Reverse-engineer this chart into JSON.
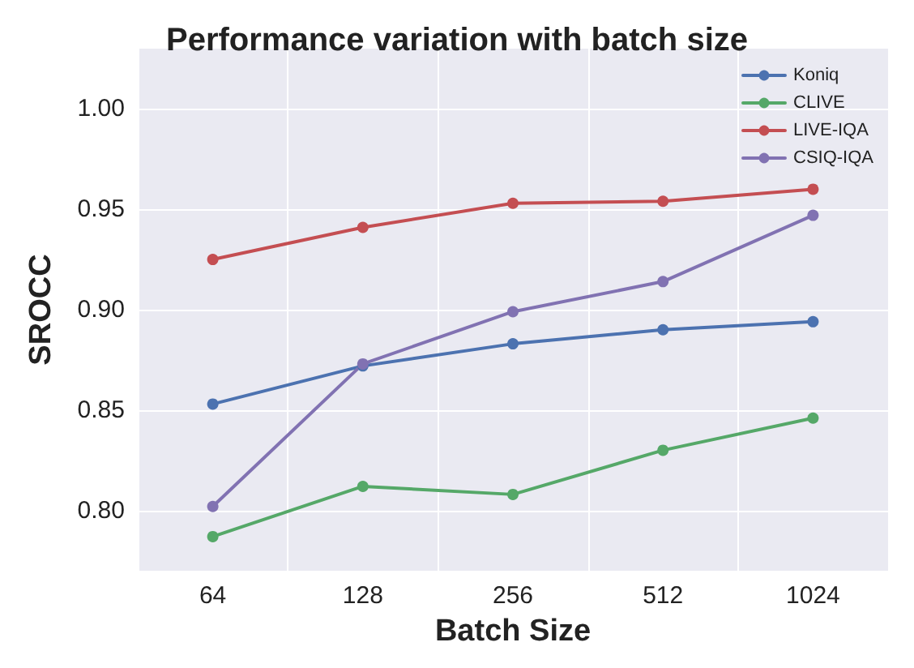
{
  "chart_data": {
    "type": "line",
    "title": "Performance variation with batch size",
    "xlabel": "Batch Size",
    "ylabel": "SROCC",
    "categories": [
      "64",
      "128",
      "256",
      "512",
      "1024"
    ],
    "series": [
      {
        "name": "Koniq",
        "color": "#4c72b0",
        "values": [
          0.853,
          0.872,
          0.883,
          0.89,
          0.894
        ]
      },
      {
        "name": "CLIVE",
        "color": "#55a868",
        "values": [
          0.787,
          0.812,
          0.808,
          0.83,
          0.846
        ]
      },
      {
        "name": "LIVE-IQA",
        "color": "#c44e52",
        "values": [
          0.925,
          0.941,
          0.953,
          0.954,
          0.96
        ]
      },
      {
        "name": "CSIQ-IQA",
        "color": "#8172b2",
        "values": [
          0.802,
          0.873,
          0.899,
          0.914,
          0.947
        ]
      }
    ],
    "ylim": [
      0.77,
      1.03
    ],
    "yticks": [
      {
        "value": 0.8,
        "label": "0.80"
      },
      0.85,
      {
        "value": 0.9,
        "label": "0.90"
      },
      0.95,
      {
        "value": 1.0,
        "label": "1.00"
      }
    ],
    "grid": true,
    "legend": "top right",
    "marker": "circle",
    "line_style": "solid"
  }
}
